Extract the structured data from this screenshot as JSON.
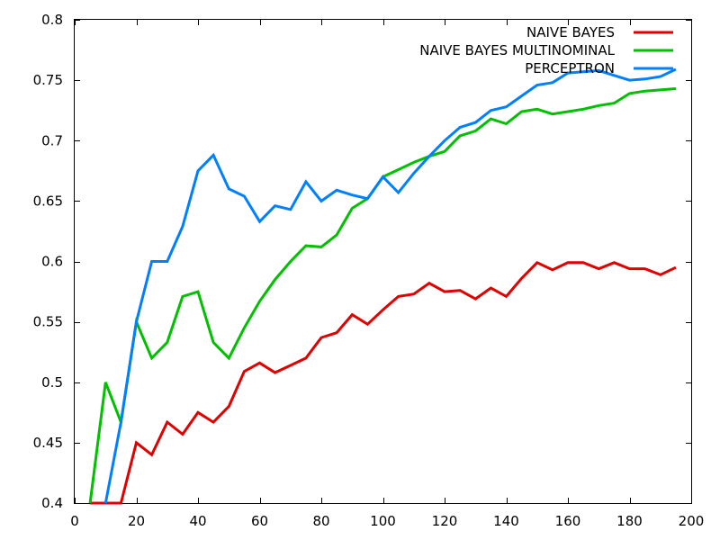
{
  "chart_data": {
    "type": "line",
    "title": "",
    "xlabel": "",
    "ylabel": "",
    "xlim": [
      0,
      200
    ],
    "ylim": [
      0.4,
      0.8
    ],
    "xticks": [
      0,
      20,
      40,
      60,
      80,
      100,
      120,
      140,
      160,
      180,
      200
    ],
    "yticks": [
      0.4,
      0.45,
      0.5,
      0.55,
      0.6,
      0.65,
      0.7,
      0.75,
      0.8
    ],
    "ytick_labels": [
      "0.4",
      "0.45",
      "0.5",
      "0.55",
      "0.6",
      "0.65",
      "0.7",
      "0.75",
      "0.8"
    ],
    "grid": false,
    "legend": "top-right",
    "series": [
      {
        "name": "NAIVE BAYES",
        "color": "#e00000",
        "x": [
          5,
          10,
          15,
          20,
          25,
          30,
          35,
          40,
          45,
          50,
          55,
          60,
          65,
          70,
          75,
          80,
          85,
          90,
          95,
          100,
          105,
          110,
          115,
          120,
          125,
          130,
          135,
          140,
          145,
          150,
          155,
          160,
          165,
          170,
          175,
          180,
          185,
          190,
          195
        ],
        "y": [
          0.4,
          0.4,
          0.4,
          0.45,
          0.44,
          0.467,
          0.457,
          0.475,
          0.467,
          0.48,
          0.509,
          0.516,
          0.508,
          0.514,
          0.52,
          0.537,
          0.541,
          0.556,
          0.548,
          0.56,
          0.571,
          0.573,
          0.582,
          0.575,
          0.576,
          0.569,
          0.578,
          0.571,
          0.586,
          0.599,
          0.593,
          0.599,
          0.599,
          0.594,
          0.599,
          0.594,
          0.594,
          0.589,
          0.595
        ]
      },
      {
        "name": "NAIVE BAYES MULTINOMINAL",
        "color": "#00c000",
        "x": [
          5,
          10,
          15,
          20,
          25,
          30,
          35,
          40,
          45,
          50,
          55,
          60,
          65,
          70,
          75,
          80,
          85,
          90,
          95,
          100,
          105,
          110,
          115,
          120,
          125,
          130,
          135,
          140,
          145,
          150,
          155,
          160,
          165,
          170,
          175,
          180,
          185,
          190,
          195
        ],
        "y": [
          0.4,
          0.5,
          0.467,
          0.55,
          0.52,
          0.533,
          0.571,
          0.575,
          0.533,
          0.52,
          0.545,
          0.567,
          0.585,
          0.6,
          0.613,
          0.612,
          0.622,
          0.644,
          0.652,
          0.67,
          0.676,
          0.682,
          0.687,
          0.691,
          0.704,
          0.708,
          0.718,
          0.714,
          0.724,
          0.726,
          0.722,
          0.724,
          0.726,
          0.729,
          0.731,
          0.739,
          0.741,
          0.742,
          0.743
        ]
      },
      {
        "name": "PERCEPTRON",
        "color": "#0080ff",
        "x": [
          10,
          15,
          20,
          25,
          30,
          35,
          40,
          45,
          50,
          55,
          60,
          65,
          70,
          75,
          80,
          85,
          90,
          95,
          100,
          105,
          110,
          115,
          120,
          125,
          130,
          135,
          140,
          145,
          150,
          155,
          160,
          165,
          170,
          175,
          180,
          185,
          190,
          195
        ],
        "y": [
          0.4,
          0.467,
          0.55,
          0.6,
          0.6,
          0.629,
          0.675,
          0.688,
          0.66,
          0.654,
          0.633,
          0.646,
          0.643,
          0.666,
          0.65,
          0.659,
          0.655,
          0.652,
          0.67,
          0.657,
          0.673,
          0.687,
          0.7,
          0.711,
          0.715,
          0.725,
          0.728,
          0.737,
          0.746,
          0.748,
          0.756,
          0.757,
          0.758,
          0.754,
          0.75,
          0.751,
          0.753,
          0.759
        ]
      }
    ]
  }
}
